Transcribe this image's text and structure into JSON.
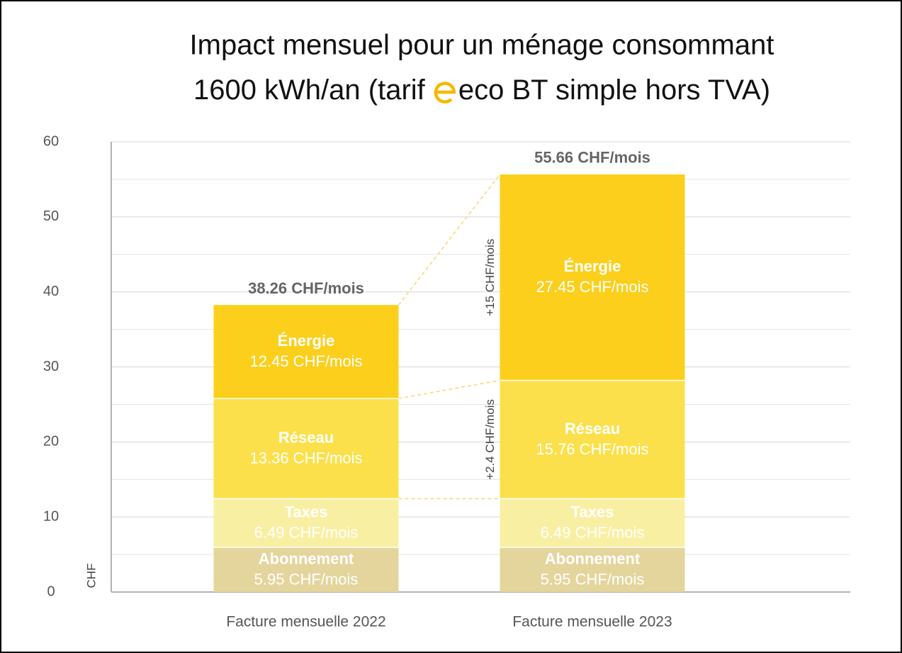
{
  "chart_data": {
    "type": "stacked_bar",
    "title": [
      "Impact mensuel pour un ménage consommant",
      "1600 kWh/an (tarif ",
      "eco BT simple hors TVA)"
    ],
    "y_label": "CHF",
    "categories": [
      "Facture mensuelle 2022",
      "Facture mensuelle 2023"
    ],
    "series": [
      {
        "name": "Abonnement",
        "color": "#e3d59c",
        "values": [
          5.95,
          5.95
        ],
        "value_labels": [
          "5.95 CHF/mois",
          "5.95 CHF/mois"
        ]
      },
      {
        "name": "Taxes",
        "color": "#f8efa3",
        "values": [
          6.49,
          6.49
        ],
        "value_labels": [
          "6.49 CHF/mois",
          "6.49 CHF/mois"
        ]
      },
      {
        "name": "Réseau",
        "color": "#fbe04b",
        "values": [
          13.36,
          15.76
        ],
        "value_labels": [
          "13.36 CHF/mois",
          "15.76 CHF/mois"
        ],
        "difference": {
          "value": 2.4,
          "label": "+2.4 CHF/mois"
        }
      },
      {
        "name": "Énergie",
        "color": "#fbcf1c",
        "values": [
          12.45,
          27.45
        ],
        "value_labels": [
          "12.45 CHF/mois",
          "27.45 CHF/mois"
        ],
        "difference": {
          "value": 15,
          "label": "+15 CHF/mois"
        }
      }
    ],
    "totals": [
      38.26,
      55.66
    ],
    "total_labels": [
      "38.26 CHF/mois",
      "55.66 CHF/mois"
    ],
    "ylim": [
      0,
      60
    ],
    "yticks": [
      0,
      10,
      20,
      30,
      40,
      50,
      60
    ],
    "minor_yticks": [
      5,
      15,
      25,
      35,
      45,
      55
    ],
    "grid": true
  }
}
